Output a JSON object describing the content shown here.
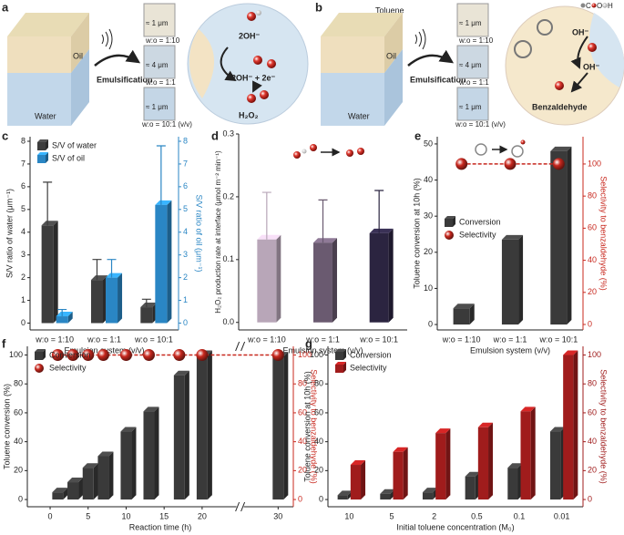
{
  "panels": [
    {
      "label": "a",
      "oil": "Oil",
      "water": "Water",
      "process": "Emulsification",
      "sizes": [
        "≈ 1 μm",
        "≈ 4 μm",
        "≈ 1 μm"
      ],
      "ratios": [
        "w:o = 1:10",
        "w:o = 1:1",
        "w:o = 10:1 (v/v)"
      ],
      "reaction": [
        "2OH⁻",
        "2OH⁻ + 2e⁻",
        "H₂O₂"
      ]
    },
    {
      "label": "b",
      "solvent": "Toluene",
      "oil": "Oil",
      "water": "Water",
      "process": "Emulsification",
      "sizes": [
        "≈ 1 μm",
        "≈ 4 μm",
        "≈ 1 μm"
      ],
      "ratios": [
        "w:o = 1:10",
        "w:o = 1:1",
        "w:o = 10:1 (v/v)"
      ],
      "reaction": [
        "OH⁻",
        "OH⁻",
        "Benzaldehyde"
      ],
      "legend": [
        "C",
        "O",
        "H"
      ]
    }
  ],
  "chart_data": [
    {
      "type": "bar",
      "label": "c",
      "categories": [
        "w:o = 1:10",
        "w:o = 1:1",
        "w:o = 10:1"
      ],
      "xlabel": "Emulsion system (v/v)",
      "ylabel": "S/V ratio of water (μm⁻¹)",
      "y2label": "S/V ratio of oil (μm⁻¹)",
      "ylim": [
        -0.3,
        8.2
      ],
      "yticks": [
        0,
        1,
        2,
        3,
        4,
        5,
        6,
        7,
        8
      ],
      "y2lim": [
        -0.3,
        8.2
      ],
      "y2ticks": [
        0,
        1,
        2,
        3,
        4,
        5,
        6,
        7,
        8
      ],
      "legend": "upper left",
      "series": [
        {
          "name": "S/V of water",
          "color": "#3d3d3d",
          "values": [
            4.3,
            1.9,
            0.7
          ],
          "errors": [
            1.9,
            0.9,
            0.35
          ]
        },
        {
          "name": "S/V of oil",
          "color": "#2a86c4",
          "axis": "y2",
          "values": [
            0.3,
            2.0,
            5.2
          ],
          "errors": [
            0.3,
            0.8,
            2.6
          ]
        }
      ]
    },
    {
      "type": "bar",
      "label": "d",
      "categories": [
        "w:o = 1:10",
        "w:o = 1:1",
        "w:o = 10:1"
      ],
      "xlabel": "Emulsion system (v/v)",
      "ylabel": "H₂O₂ production rate at interface (μmol m⁻² min⁻¹)",
      "ylim": [
        -0.012,
        0.3
      ],
      "yticks": [
        {
          "value": 0,
          "label": "0.0"
        },
        0.1,
        0.2,
        0.3
      ],
      "series": [
        {
          "colors": [
            "#b8a6b8",
            "#6a5a70",
            "#2b2440"
          ],
          "values": [
            0.132,
            0.127,
            0.142
          ],
          "errors": [
            0.075,
            0.068,
            0.068
          ]
        }
      ]
    },
    {
      "type": "bar",
      "label": "e",
      "categories": [
        "w:o = 1:10",
        "w:o = 1:1",
        "w:o = 10:1"
      ],
      "xlabel": "Emulsion system (v/v)",
      "ylabel": "Toluene conversion at 10h (%)",
      "y2label": "Selectivity to benzaldehyde (%)",
      "ylim": [
        -1.5,
        52
      ],
      "yticks": [
        0,
        10,
        20,
        30,
        40,
        50
      ],
      "y2lim": [
        -3.4,
        117
      ],
      "y2ticks": [
        0,
        20,
        40,
        60,
        80,
        100
      ],
      "legend": "center left",
      "series": [
        {
          "name": "Conversion",
          "color": "#3a3a3a",
          "values": [
            4.5,
            23.5,
            48
          ]
        },
        {
          "name": "Selectivity",
          "color": "#c8281e",
          "axis": "y2",
          "mark": "sphere",
          "values": [
            100,
            100,
            100
          ]
        }
      ]
    },
    {
      "type": "bar",
      "label": "f",
      "x": [
        1,
        3,
        5,
        7,
        10,
        13,
        17,
        20,
        30
      ],
      "xlim": [
        -3,
        32
      ],
      "xticks": [
        0,
        5,
        10,
        15,
        20,
        30
      ],
      "axis_break": true,
      "xlabel": "Reaction time (h)",
      "ylabel": "Toluene conversion (%)",
      "y2label": "Selectivity to benzaldehyde (%)",
      "ylim": [
        -5,
        106
      ],
      "yticks": [
        0,
        20,
        40,
        60,
        80,
        100
      ],
      "y2lim": [
        -5,
        106
      ],
      "y2ticks": [
        0,
        20,
        40,
        60,
        80,
        100
      ],
      "legend": "upper left",
      "series": [
        {
          "name": "Conversion",
          "color": "#3a3a3a",
          "values": [
            5,
            12,
            22,
            30,
            47,
            61,
            86,
            100,
            99
          ]
        },
        {
          "name": "Selectivity",
          "color": "#c8281e",
          "axis": "y2",
          "mark": "sphere",
          "values": [
            100,
            100,
            100,
            100,
            100,
            100,
            100,
            100,
            100
          ]
        }
      ]
    },
    {
      "type": "bar",
      "label": "g",
      "categories": [
        "10",
        "5",
        "2",
        "0.5",
        "0.1",
        "0.01"
      ],
      "xlabel": "Initial toluene concentration (M₀)",
      "ylabel": "Toluene conversion at 10h (%)",
      "y2label": "Selectivity to benzaldehyde (%)",
      "ylim": [
        -5,
        106
      ],
      "yticks": [
        0,
        20,
        40,
        60,
        80,
        100
      ],
      "y2lim": [
        -5,
        106
      ],
      "y2ticks": [
        0,
        20,
        40,
        60,
        80,
        100
      ],
      "legend": "upper left",
      "series": [
        {
          "name": "Conversion",
          "color": "#3a3a3a",
          "values": [
            3,
            4,
            5,
            16,
            22,
            47
          ]
        },
        {
          "name": "Selectivity",
          "color": "#a01c1c",
          "axis": "y2",
          "values": [
            24,
            33,
            46,
            50,
            61,
            100
          ]
        }
      ]
    }
  ]
}
